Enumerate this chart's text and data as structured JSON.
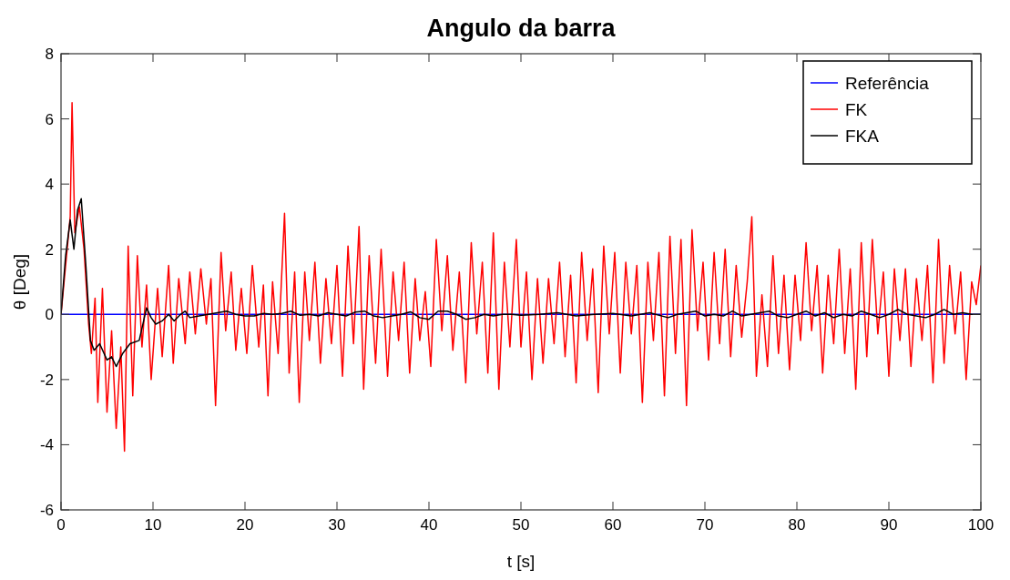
{
  "chart_data": {
    "type": "line",
    "title": "Angulo da barra",
    "xlabel": "t [s]",
    "ylabel": "θ [Deg]",
    "xlim": [
      0,
      100
    ],
    "ylim": [
      -6,
      8
    ],
    "xticks": [
      0,
      10,
      20,
      30,
      40,
      50,
      60,
      70,
      80,
      90,
      100
    ],
    "yticks": [
      -6,
      -4,
      -2,
      0,
      2,
      4,
      6,
      8
    ],
    "grid": false,
    "legend": "top right",
    "line_style": "solid",
    "marker": "none",
    "series": [
      {
        "name": "Referência",
        "color": "#0000ff",
        "x": [
          0,
          100
        ],
        "values": [
          0,
          0
        ]
      },
      {
        "name": "FK",
        "color": "#ff0000",
        "x": [
          0,
          0.5,
          1.0,
          1.2,
          1.5,
          2,
          2.5,
          3,
          3.3,
          3.7,
          4,
          4.5,
          5,
          5.5,
          6,
          6.5,
          6.9,
          7.3,
          7.8,
          8.3,
          8.8,
          9.3,
          9.8,
          10.5,
          11,
          11.7,
          12.2,
          12.8,
          13.5,
          14,
          14.6,
          15.2,
          15.8,
          16.3,
          16.8,
          17.4,
          17.9,
          18.5,
          19,
          19.6,
          20.2,
          20.8,
          21.5,
          22,
          22.5,
          23,
          23.6,
          24.3,
          24.8,
          25.4,
          25.9,
          26.5,
          27,
          27.6,
          28.2,
          28.8,
          29.4,
          30,
          30.6,
          31.2,
          31.8,
          32.4,
          32.9,
          33.5,
          34.2,
          34.8,
          35.5,
          36.1,
          36.7,
          37.3,
          37.9,
          38.5,
          39,
          39.6,
          40.2,
          40.8,
          41.4,
          42,
          42.6,
          43.3,
          44,
          44.6,
          45.2,
          45.8,
          46.4,
          47,
          47.6,
          48.2,
          48.8,
          49.5,
          50,
          50.6,
          51.2,
          51.8,
          52.4,
          53,
          53.6,
          54.2,
          54.8,
          55.4,
          56,
          56.6,
          57.2,
          57.8,
          58.4,
          59,
          59.6,
          60.2,
          60.8,
          61.4,
          62,
          62.6,
          63.2,
          63.8,
          64.4,
          65,
          65.6,
          66.2,
          66.8,
          67.4,
          68,
          68.6,
          69.2,
          69.8,
          70.4,
          71,
          71.6,
          72.2,
          72.8,
          73.4,
          74,
          74.6,
          75.1,
          75.6,
          76.2,
          76.8,
          77.4,
          78,
          78.6,
          79.2,
          79.8,
          80.4,
          81,
          81.6,
          82.2,
          82.8,
          83.4,
          84,
          84.6,
          85.2,
          85.8,
          86.4,
          87,
          87.6,
          88.2,
          88.8,
          89.4,
          90,
          90.6,
          91.2,
          91.8,
          92.4,
          93,
          93.6,
          94.2,
          94.8,
          95.4,
          96,
          96.6,
          97.2,
          97.8,
          98.4,
          99,
          99.5,
          100
        ],
        "values": [
          0,
          1.5,
          3,
          6.5,
          2.5,
          3.3,
          2,
          -0.3,
          -1.2,
          0.5,
          -2.7,
          0.8,
          -3,
          -0.5,
          -3.5,
          -1,
          -4.2,
          2.1,
          -2.5,
          1.8,
          -1,
          0.9,
          -2,
          0.8,
          -1.3,
          1.5,
          -1.5,
          1.1,
          -0.9,
          1.3,
          -0.6,
          1.4,
          -0.3,
          1.1,
          -2.8,
          1.9,
          -0.5,
          1.3,
          -1.1,
          0.8,
          -1.2,
          1.5,
          -1,
          0.9,
          -2.5,
          1,
          -1.2,
          3.1,
          -1.8,
          1.3,
          -2.7,
          1.3,
          -0.8,
          1.6,
          -1.5,
          1.1,
          -0.9,
          1.5,
          -1.9,
          2.1,
          -0.9,
          2.7,
          -2.3,
          1.8,
          -1.5,
          2,
          -1.9,
          1.3,
          -0.8,
          1.6,
          -1.8,
          1.1,
          -0.8,
          0.7,
          -1.6,
          2.3,
          -0.5,
          1.8,
          -1.1,
          1.3,
          -2.1,
          2.2,
          -0.6,
          1.6,
          -1.8,
          2.5,
          -2.3,
          1.6,
          -1,
          2.3,
          -1,
          1.3,
          -2,
          1.1,
          -1.5,
          1.1,
          -0.9,
          1.6,
          -1.3,
          1.2,
          -2.1,
          1.9,
          -0.8,
          1.4,
          -2.4,
          2.1,
          -0.6,
          1.9,
          -1.8,
          1.6,
          -0.6,
          1.5,
          -2.7,
          1.6,
          -0.8,
          1.9,
          -2.5,
          2.4,
          -1.2,
          2.3,
          -2.8,
          2.6,
          -0.5,
          1.6,
          -1.4,
          1.9,
          -0.9,
          2,
          -1.3,
          1.5,
          -0.7,
          1,
          3,
          -1.9,
          0.6,
          -1.6,
          1.8,
          -1.2,
          1.2,
          -1.7,
          1.2,
          -0.8,
          2.2,
          -0.5,
          1.5,
          -1.8,
          1.2,
          -0.9,
          2,
          -1.2,
          1.4,
          -2.3,
          2.2,
          -1.3,
          2.3,
          -0.6,
          1.3,
          -1.9,
          1.4,
          -0.8,
          1.4,
          -1.6,
          1.1,
          -0.8,
          1.5,
          -2.1,
          2.3,
          -1.5,
          1.5,
          -0.6,
          1.3,
          -2,
          1,
          0.3,
          1.5
        ]
      },
      {
        "name": "FKA",
        "color": "#000000",
        "x": [
          0,
          0.5,
          1,
          1.4,
          1.8,
          2.2,
          2.7,
          3.2,
          3.6,
          4.2,
          5,
          5.5,
          6,
          6.7,
          7.5,
          8.5,
          9.3,
          9.8,
          10.3,
          11,
          11.7,
          12.3,
          13,
          13.5,
          14,
          15,
          16,
          17,
          18,
          19,
          20,
          21,
          22,
          23,
          24,
          25,
          26,
          27,
          28,
          29,
          30,
          31,
          32,
          33,
          34,
          35,
          36,
          37,
          38,
          39,
          40,
          41,
          42,
          43,
          44,
          45,
          46,
          47,
          48,
          49,
          50,
          52,
          54,
          56,
          58,
          60,
          62,
          64,
          66,
          67,
          68,
          69,
          70,
          71,
          72,
          73,
          74,
          75,
          76,
          77,
          78,
          79,
          80,
          81,
          82,
          83,
          84,
          85,
          86,
          87,
          88,
          89,
          90,
          91,
          92,
          93,
          94,
          95,
          96,
          97,
          98,
          99,
          100
        ],
        "values": [
          0,
          1.8,
          2.9,
          2,
          3.2,
          3.55,
          1.5,
          -0.8,
          -1.1,
          -0.9,
          -1.4,
          -1.3,
          -1.6,
          -1.2,
          -0.9,
          -0.8,
          0.2,
          -0.1,
          -0.3,
          -0.2,
          0,
          -0.2,
          0,
          0.1,
          -0.1,
          -0.05,
          0,
          0.05,
          0.1,
          0,
          -0.05,
          -0.05,
          0.03,
          0,
          0.03,
          0.1,
          -0.03,
          0,
          -0.05,
          0.05,
          0,
          -0.05,
          0.07,
          0.1,
          -0.05,
          -0.1,
          -0.05,
          0,
          0.08,
          -0.1,
          -0.15,
          0.1,
          0.1,
          0,
          -0.15,
          -0.1,
          0,
          -0.05,
          0,
          0,
          -0.03,
          0,
          0.05,
          -0.05,
          0,
          0.03,
          -0.05,
          0.05,
          -0.1,
          0,
          0.05,
          0.1,
          -0.05,
          0,
          -0.05,
          0.1,
          -0.05,
          0,
          0.05,
          0.1,
          -0.05,
          -0.1,
          0,
          0.1,
          -0.05,
          0.05,
          -0.1,
          0,
          -0.05,
          0.1,
          0,
          -0.1,
          0,
          0.15,
          0,
          -0.05,
          -0.1,
          0,
          0.15,
          0,
          0.05,
          0,
          0
        ]
      }
    ]
  }
}
